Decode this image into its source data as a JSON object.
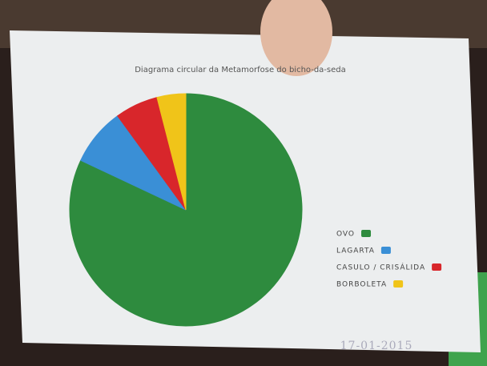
{
  "chart_data": {
    "type": "pie",
    "title": "Diagrama circular da Metamorfose do bicho-da-seda",
    "categories": [
      "OVO",
      "LAGARTA",
      "CASULO / CRISÁLIDA",
      "BORBOLETA"
    ],
    "values": [
      82,
      8,
      6,
      4
    ],
    "colors": [
      "#2e8b3e",
      "#3a8fd6",
      "#d8262b",
      "#f0c419"
    ],
    "legend": "right",
    "date": "17-01-2015"
  }
}
